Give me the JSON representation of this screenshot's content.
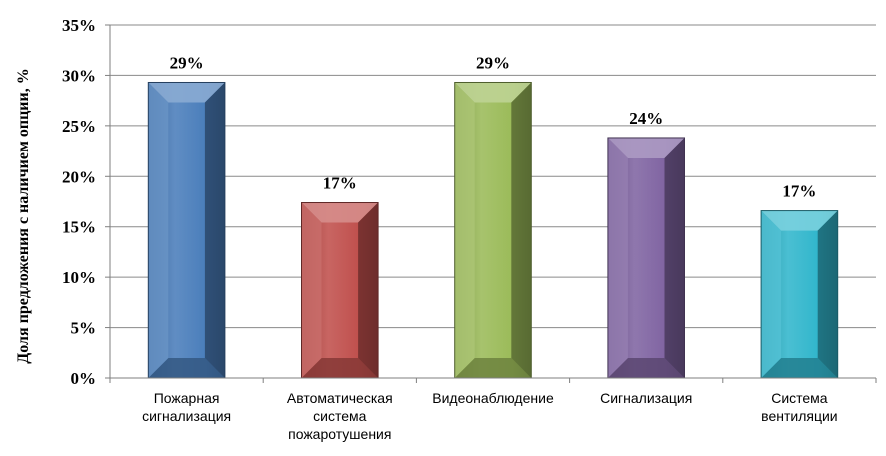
{
  "chart_data": {
    "type": "bar",
    "ylabel": "Доля предложения с наличием опции, %",
    "xlabel": "",
    "ylim": [
      0,
      35
    ],
    "ytick_step": 5,
    "ytick_labels": [
      "0%",
      "5%",
      "10%",
      "15%",
      "20%",
      "25%",
      "30%",
      "35%"
    ],
    "grid": true,
    "legend": "none",
    "categories": [
      [
        "Пожарная",
        "сигнализация"
      ],
      [
        "Автоматическая",
        "система",
        "пожаротушения"
      ],
      [
        "Видеонаблюдение"
      ],
      [
        "Сигнализация"
      ],
      [
        "Система",
        "вентиляции"
      ]
    ],
    "values": [
      29.3,
      17.4,
      29.3,
      23.8,
      16.6
    ],
    "data_labels": [
      "29%",
      "17%",
      "29%",
      "24%",
      "17%"
    ],
    "colors": [
      "#4a7ebb",
      "#c0504d",
      "#9bbb59",
      "#8064a2",
      "#31b6cc"
    ]
  }
}
